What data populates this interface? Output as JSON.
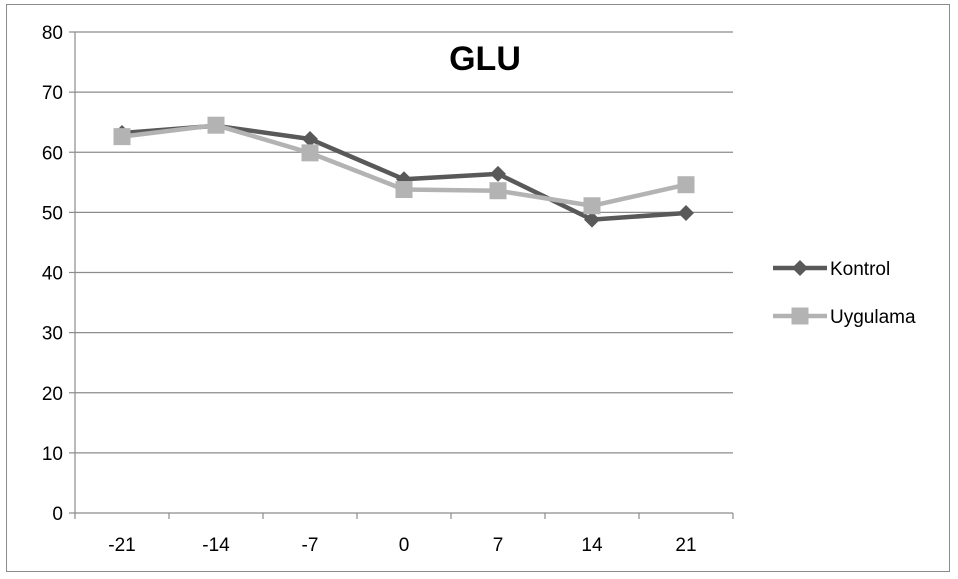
{
  "chart_data": {
    "type": "line",
    "title": "GLU",
    "xlabel": "",
    "ylabel": "",
    "categories": [
      "-21",
      "-14",
      "-7",
      "0",
      "7",
      "14",
      "21"
    ],
    "ylim": [
      0,
      80
    ],
    "yticks": [
      0,
      10,
      20,
      30,
      40,
      50,
      60,
      70,
      80
    ],
    "grid": "horizontal",
    "legend": "right",
    "series": [
      {
        "name": "Kontrol",
        "values": [
          63.2,
          64.4,
          62.2,
          55.5,
          56.4,
          48.8,
          49.9
        ],
        "color": "#595959",
        "marker": "diamond"
      },
      {
        "name": "Uygulama",
        "values": [
          62.6,
          64.5,
          59.9,
          53.8,
          53.6,
          51.1,
          54.6
        ],
        "color": "#b3b3b3",
        "marker": "square"
      }
    ]
  }
}
